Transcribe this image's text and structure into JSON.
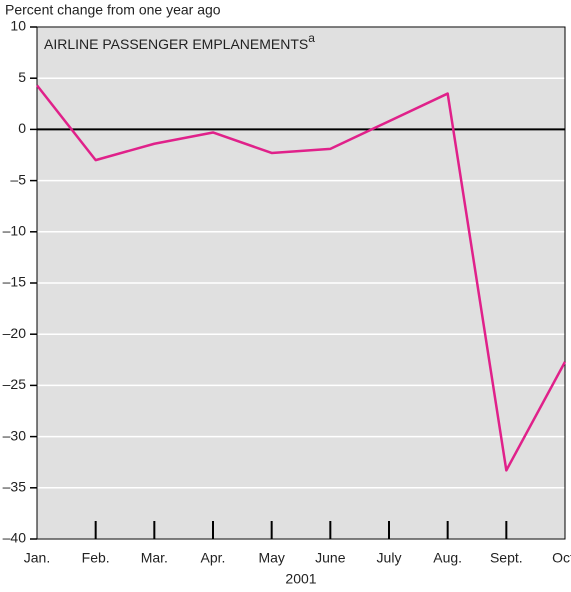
{
  "chart_data": {
    "type": "line",
    "title": "AIRLINE PASSENGER EMPLANEMENTS",
    "title_note": "a",
    "y_label": "Percent change from one year ago",
    "x_label": "2001",
    "categories": [
      "Jan.",
      "Feb.",
      "Mar.",
      "Apr.",
      "May",
      "June",
      "July",
      "Aug.",
      "Sept.",
      "Oct."
    ],
    "series": [
      {
        "name": "Airline passenger emplanements",
        "color": "#e0218a",
        "values": [
          4.3,
          -3.0,
          -1.4,
          -0.3,
          -2.3,
          -1.9,
          0.8,
          3.5,
          -33.3,
          -22.7
        ]
      }
    ],
    "ylim": [
      -40,
      10
    ],
    "yticks": [
      {
        "value": -40,
        "label": "–40"
      },
      {
        "value": -35,
        "label": "–35"
      },
      {
        "value": -30,
        "label": "–30"
      },
      {
        "value": -25,
        "label": "–25"
      },
      {
        "value": -20,
        "label": "–20"
      },
      {
        "value": -15,
        "label": "–15"
      },
      {
        "value": -10,
        "label": "–10"
      },
      {
        "value": -5,
        "label": "–5"
      },
      0,
      5,
      10
    ],
    "grid": true
  }
}
